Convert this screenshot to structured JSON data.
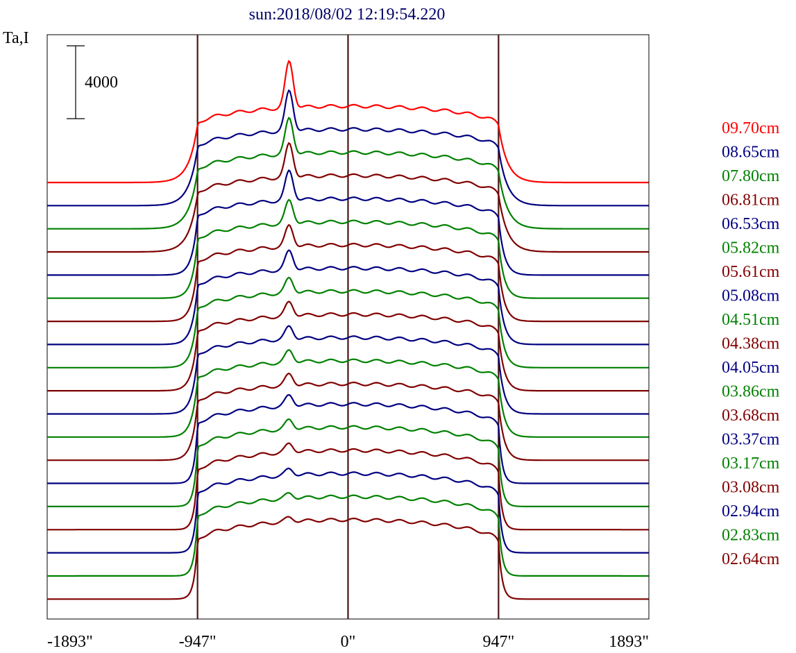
{
  "chart_data": {
    "type": "line",
    "title": "sun:2018/08/02 12:19:54.220",
    "ylabel": "Ta,I",
    "scale_bar_label": "4000",
    "scale_bar_value": 4000,
    "xlim": [
      -1893,
      1893
    ],
    "x_ticks": [
      {
        "value": -1893,
        "label": "-1893\""
      },
      {
        "value": -947,
        "label": "-947\""
      },
      {
        "value": 0,
        "label": "0\""
      },
      {
        "value": 947,
        "label": "947\""
      },
      {
        "value": 1893,
        "label": "1893\""
      }
    ],
    "reference_lines_x": [
      -947,
      0,
      947
    ],
    "grid": false,
    "legend_position": "right",
    "series": [
      {
        "name": "09.70cm",
        "color": "#ff0000",
        "peak": 1.1,
        "shape": "wide"
      },
      {
        "name": "08.65cm",
        "color": "#000080",
        "peak": 0.95,
        "shape": "wide"
      },
      {
        "name": "07.80cm",
        "color": "#008000",
        "peak": 0.85,
        "shape": "wide"
      },
      {
        "name": "06.81cm",
        "color": "#800000",
        "peak": 0.8,
        "shape": "wide"
      },
      {
        "name": "06.53cm",
        "color": "#000080",
        "peak": 0.7,
        "shape": "mid"
      },
      {
        "name": "05.82cm",
        "color": "#008000",
        "peak": 0.55,
        "shape": "mid"
      },
      {
        "name": "05.61cm",
        "color": "#800000",
        "peak": 0.5,
        "shape": "mid"
      },
      {
        "name": "05.08cm",
        "color": "#000080",
        "peak": 0.45,
        "shape": "mid"
      },
      {
        "name": "04.51cm",
        "color": "#008000",
        "peak": 0.35,
        "shape": "mid"
      },
      {
        "name": "04.38cm",
        "color": "#800000",
        "peak": 0.33,
        "shape": "mid"
      },
      {
        "name": "04.05cm",
        "color": "#000080",
        "peak": 0.3,
        "shape": "mid"
      },
      {
        "name": "03.86cm",
        "color": "#008000",
        "peak": 0.28,
        "shape": "mid"
      },
      {
        "name": "03.68cm",
        "color": "#800000",
        "peak": 0.27,
        "shape": "mid"
      },
      {
        "name": "03.37cm",
        "color": "#000080",
        "peak": 0.25,
        "shape": "narrow"
      },
      {
        "name": "03.17cm",
        "color": "#008000",
        "peak": 0.22,
        "shape": "narrow"
      },
      {
        "name": "03.08cm",
        "color": "#800000",
        "peak": 0.2,
        "shape": "narrow"
      },
      {
        "name": "02.94cm",
        "color": "#000080",
        "peak": 0.15,
        "shape": "narrow"
      },
      {
        "name": "02.83cm",
        "color": "#008000",
        "peak": 0.12,
        "shape": "narrow"
      },
      {
        "name": "02.64cm",
        "color": "#800000",
        "peak": 0.1,
        "shape": "narrow"
      }
    ]
  }
}
